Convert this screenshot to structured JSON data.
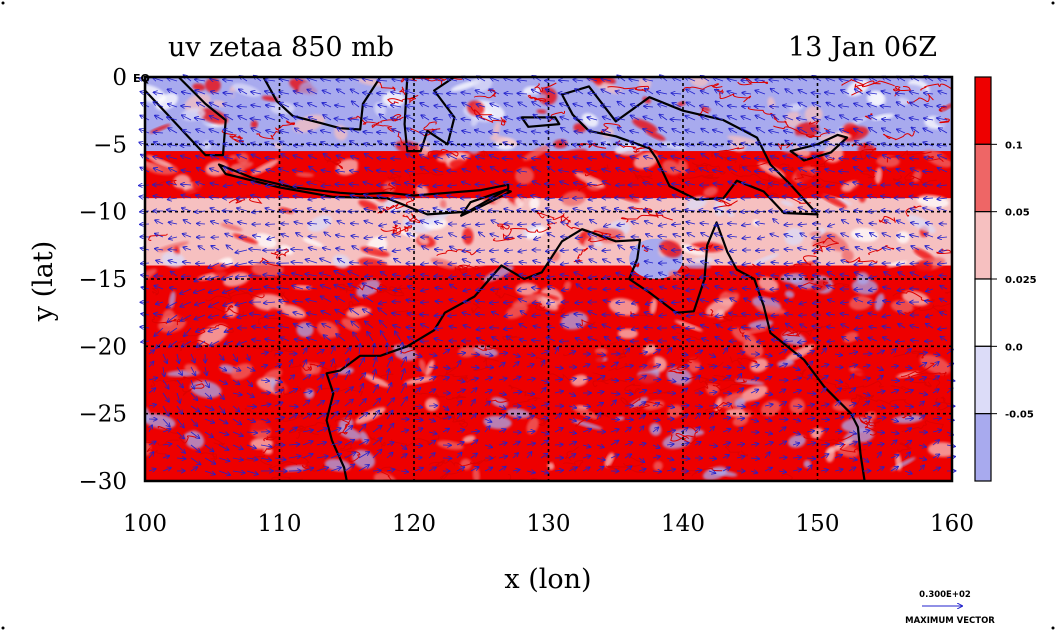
{
  "chart_data": {
    "type": "heatmap",
    "title": "uv zetaa 850 mb",
    "subtitle": "13 Jan 06Z",
    "xlabel": "x (lon)",
    "ylabel": "y (lat)",
    "xlim": [
      100,
      160
    ],
    "ylim": [
      -30,
      0
    ],
    "xticks": [
      100,
      110,
      120,
      130,
      140,
      150,
      160
    ],
    "yticks": [
      0,
      -5,
      -10,
      -15,
      -20,
      -25,
      -30
    ],
    "grid": true,
    "equator_label": "EQ",
    "colorbar": {
      "placement": "right",
      "levels": [
        "0.1",
        "0.05",
        "0.025",
        "0.0",
        "-0.05"
      ],
      "colors": [
        "#ee0000",
        "#ee6666",
        "#f6c0c0",
        "#ffffff",
        "#dcdcf8",
        "#a8aaee"
      ]
    },
    "vector_legend": {
      "value": "0.300E+02",
      "label": "MAXIMUM VECTOR",
      "color": "#2222cc"
    },
    "regions": [
      {
        "level": "-0.05",
        "x": [
          100,
          160
        ],
        "y": [
          -5.5,
          0
        ]
      },
      {
        "level": "0.1",
        "x": [
          100,
          160
        ],
        "y": [
          -9,
          -5.5
        ]
      },
      {
        "level": "0.025",
        "x": [
          100,
          160
        ],
        "y": [
          -14,
          -9
        ]
      },
      {
        "level": "0.1",
        "x": [
          100,
          160
        ],
        "y": [
          -20,
          -14
        ]
      },
      {
        "level": "0.1",
        "x": [
          100,
          160
        ],
        "y": [
          -30,
          -20
        ]
      },
      {
        "level": "0.1",
        "x": [
          104,
          114
        ],
        "y": [
          -26,
          -20
        ]
      },
      {
        "level": "-0.05",
        "x": [
          136,
          140
        ],
        "y": [
          -15,
          -12
        ]
      }
    ]
  },
  "colors": {
    "vector": "#2222cc",
    "coast": "#000000",
    "contour": "#dd0000"
  }
}
